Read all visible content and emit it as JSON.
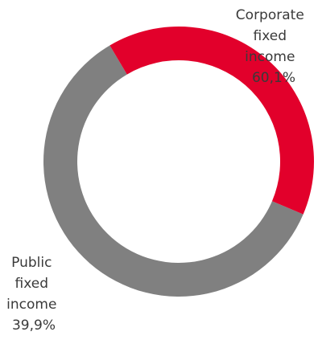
{
  "chart_data": {
    "type": "pie",
    "variant": "donut",
    "title": "",
    "slices": [
      {
        "label_lines": [
          "Corporate",
          "fixed",
          "income",
          "60,1%"
        ],
        "value": 60.1,
        "color": "#808080"
      },
      {
        "label_lines": [
          "Public",
          "fixed",
          "income",
          "39,9%"
        ],
        "value": 39.9,
        "color": "#e2002b"
      }
    ],
    "legend": "none"
  }
}
